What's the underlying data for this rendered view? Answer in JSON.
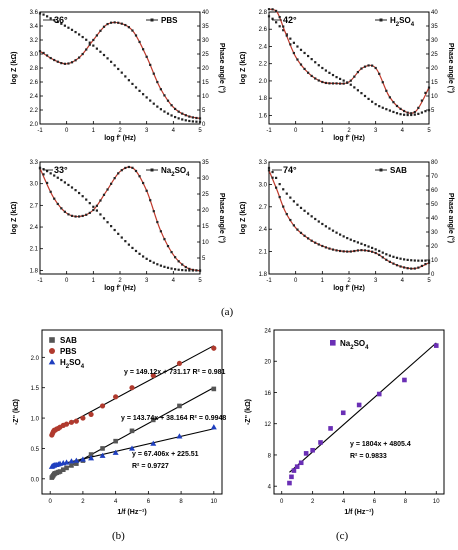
{
  "captions": {
    "a": "(a)",
    "b": "(b)",
    "c": "(c)"
  },
  "chart_data": [
    {
      "id": "bode-pbs",
      "type": "line",
      "xlabel": "log f' (Hz)",
      "ylabel": "log Z (kΩ)",
      "y2label": "Phase angle (°)",
      "xlim": [
        -1,
        5
      ],
      "ylim": [
        2.0,
        3.6
      ],
      "y2lim": [
        0,
        40
      ],
      "xticks": [
        "-1",
        "0",
        "1",
        "2",
        "3",
        "4",
        "5"
      ],
      "yticks": [
        "2.0",
        "2.2",
        "2.4",
        "2.6",
        "2.8",
        "3.0",
        "3.2",
        "3.4",
        "3.6"
      ],
      "y2ticks": [
        "0",
        "5",
        "10",
        "15",
        "20",
        "25",
        "30",
        "35",
        "40"
      ],
      "legend": "PBS",
      "annotation": "36°",
      "series": [
        {
          "axis": "y",
          "color": "#222222",
          "x": [
            -1,
            -0.5,
            0,
            0.5,
            1,
            1.5,
            2,
            2.5,
            3,
            3.5,
            4,
            4.5,
            5
          ],
          "y": [
            3.58,
            3.49,
            3.39,
            3.27,
            3.12,
            2.95,
            2.76,
            2.56,
            2.38,
            2.22,
            2.11,
            2.05,
            2.03
          ]
        },
        {
          "axis": "y2",
          "color": "#c0392b",
          "x": [
            -1,
            -0.5,
            0,
            0.5,
            1,
            1.5,
            2,
            2.5,
            3,
            3.5,
            4,
            4.5,
            5
          ],
          "y": [
            26,
            23,
            21.5,
            24,
            30,
            35.5,
            36,
            33,
            24,
            13,
            6,
            3,
            2
          ]
        }
      ]
    },
    {
      "id": "bode-h2so4",
      "type": "line",
      "xlabel": "log f' (Hz)",
      "ylabel": "log Z (kΩ)",
      "y2label": "Phase angle (°)",
      "xlim": [
        -1,
        5
      ],
      "ylim": [
        1.5,
        2.8
      ],
      "y2lim": [
        0,
        40
      ],
      "xticks": [
        "-1",
        "0",
        "1",
        "2",
        "3",
        "4",
        "5"
      ],
      "yticks": [
        "1.6",
        "1.8",
        "2.0",
        "2.2",
        "2.4",
        "2.6",
        "2.8"
      ],
      "y2ticks": [
        "5",
        "10",
        "15",
        "20",
        "25",
        "30",
        "35",
        "40"
      ],
      "legend": "H2SO4",
      "annotation": "42°",
      "series": [
        {
          "axis": "y",
          "color": "#222222",
          "x": [
            -1,
            -0.5,
            0,
            0.5,
            1,
            1.5,
            2,
            2.5,
            3,
            3.5,
            4,
            4.5,
            5
          ],
          "y": [
            2.75,
            2.6,
            2.42,
            2.28,
            2.15,
            2.05,
            1.97,
            1.85,
            1.73,
            1.66,
            1.61,
            1.61,
            1.66
          ]
        },
        {
          "axis": "y2",
          "color": "#c0392b",
          "x": [
            -1,
            -0.7,
            -0.4,
            0,
            0.5,
            1,
            1.5,
            2,
            2.5,
            3,
            3.5,
            4,
            4.5,
            5
          ],
          "y": [
            41,
            40,
            33,
            24,
            18,
            15,
            14.5,
            15,
            20,
            20,
            10,
            5,
            4.5,
            13
          ]
        }
      ]
    },
    {
      "id": "bode-na2so4",
      "type": "line",
      "xlabel": "log f' (Hz)",
      "ylabel": "log Z (kΩ)",
      "y2label": "Phase angle (°)",
      "xlim": [
        -1,
        5
      ],
      "ylim": [
        1.75,
        3.3
      ],
      "y2lim": [
        0,
        35
      ],
      "xticks": [
        "-1",
        "0",
        "1",
        "2",
        "3",
        "4",
        "5"
      ],
      "yticks": [
        "1.8",
        "2.1",
        "2.4",
        "2.7",
        "3.0",
        "3.3"
      ],
      "y2ticks": [
        "5",
        "10",
        "15",
        "20",
        "25",
        "30",
        "35"
      ],
      "legend": "Na2SO4",
      "annotation": "33°",
      "series": [
        {
          "axis": "y",
          "color": "#222222",
          "x": [
            -1,
            -0.5,
            0,
            0.5,
            1,
            1.5,
            2,
            2.5,
            3,
            3.5,
            4,
            4.5,
            5
          ],
          "y": [
            3.22,
            3.12,
            3.0,
            2.86,
            2.68,
            2.48,
            2.28,
            2.1,
            1.96,
            1.87,
            1.82,
            1.8,
            1.8
          ]
        },
        {
          "axis": "y2",
          "color": "#c0392b",
          "x": [
            -1,
            -0.5,
            0,
            0.5,
            1,
            1.5,
            2,
            2.5,
            3,
            3.5,
            4,
            4.5,
            5
          ],
          "y": [
            33,
            24,
            19,
            18,
            20,
            26,
            32,
            33,
            26,
            14,
            6,
            2,
            1
          ]
        }
      ]
    },
    {
      "id": "bode-sab",
      "type": "line",
      "xlabel": "log f' (Hz)",
      "ylabel": "log Z (kΩ)",
      "y2label": "Phase angle (°)",
      "xlim": [
        -1,
        5
      ],
      "ylim": [
        1.8,
        3.3
      ],
      "y2lim": [
        0,
        80
      ],
      "xticks": [
        "-1",
        "0",
        "1",
        "2",
        "3",
        "4",
        "5"
      ],
      "yticks": [
        "1.8",
        "2.1",
        "2.4",
        "2.7",
        "3.0",
        "3.3"
      ],
      "y2ticks": [
        "0",
        "10",
        "20",
        "30",
        "40",
        "50",
        "60",
        "70",
        "80"
      ],
      "legend": "SAB",
      "annotation": "74°",
      "series": [
        {
          "axis": "y",
          "color": "#222222",
          "x": [
            -1,
            -0.5,
            0,
            0.5,
            1,
            1.5,
            2,
            2.5,
            3,
            3.5,
            4,
            4.5,
            5
          ],
          "y": [
            3.22,
            2.95,
            2.75,
            2.6,
            2.47,
            2.36,
            2.27,
            2.2,
            2.13,
            2.05,
            2.0,
            1.98,
            1.98
          ]
        },
        {
          "axis": "y2",
          "color": "#c0392b",
          "x": [
            -1,
            -0.7,
            -0.4,
            0,
            0.5,
            1,
            1.5,
            2,
            2.5,
            3,
            3.5,
            4,
            4.5,
            5
          ],
          "y": [
            74,
            60,
            45,
            33,
            25,
            20,
            17,
            16,
            17,
            15,
            9,
            5,
            4,
            8
          ]
        }
      ]
    },
    {
      "id": "zpp-vs-invf",
      "type": "scatter",
      "xlabel": "1/f (Hz⁻¹)",
      "ylabel": "-Z'' (kΩ)",
      "xlim": [
        -0.5,
        10.5
      ],
      "ylim": [
        -0.25,
        2.45
      ],
      "xticks": [
        "0",
        "2",
        "4",
        "6",
        "8",
        "10"
      ],
      "yticks": [
        "0.0",
        "0.5",
        "1.0",
        "1.5",
        "2.0"
      ],
      "series": [
        {
          "name": "SAB",
          "color": "#555555",
          "marker": "square",
          "x": [
            0.1,
            0.15,
            0.2,
            0.25,
            0.3,
            0.4,
            0.5,
            0.6,
            0.8,
            1.0,
            1.3,
            1.6,
            2.0,
            2.5,
            3.2,
            4.0,
            5.0,
            6.3,
            7.9,
            10.0
          ],
          "y": [
            0.02,
            0.04,
            0.06,
            0.08,
            0.09,
            0.1,
            0.11,
            0.12,
            0.15,
            0.18,
            0.22,
            0.25,
            0.3,
            0.4,
            0.5,
            0.62,
            0.79,
            0.97,
            1.2,
            1.48
          ],
          "fit": "y = 143.74x + 38.164 R² = 0.9948"
        },
        {
          "name": "PBS",
          "color": "#b03a2e",
          "marker": "circle",
          "x": [
            0.1,
            0.15,
            0.2,
            0.25,
            0.3,
            0.4,
            0.5,
            0.6,
            0.8,
            1.0,
            1.3,
            1.6,
            2.0,
            2.5,
            3.2,
            4.0,
            5.0,
            6.3,
            7.9,
            10.0
          ],
          "y": [
            0.72,
            0.75,
            0.78,
            0.8,
            0.8,
            0.82,
            0.83,
            0.85,
            0.88,
            0.9,
            0.93,
            0.95,
            1.0,
            1.06,
            1.2,
            1.35,
            1.5,
            1.7,
            1.9,
            2.15
          ],
          "fit": "y = 149.12x + 731.17 R² = 0.981"
        },
        {
          "name": "H2SO4",
          "color": "#1f3fbf",
          "marker": "triangle",
          "x": [
            0.1,
            0.15,
            0.2,
            0.25,
            0.3,
            0.4,
            0.5,
            0.6,
            0.8,
            1.0,
            1.3,
            1.6,
            2.0,
            2.5,
            3.2,
            4.0,
            5.0,
            6.3,
            7.9,
            10.0
          ],
          "y": [
            0.2,
            0.21,
            0.22,
            0.22,
            0.23,
            0.23,
            0.24,
            0.25,
            0.26,
            0.27,
            0.29,
            0.3,
            0.32,
            0.34,
            0.38,
            0.43,
            0.5,
            0.58,
            0.7,
            0.85
          ],
          "fit": "y = 67.406x + 225.51 R² = 0.9727"
        }
      ]
    },
    {
      "id": "zpp-na2so4",
      "type": "scatter",
      "xlabel": "1/f (Hz⁻¹)",
      "ylabel": "-Z'' (kΩ)",
      "xlim": [
        -0.5,
        10.5
      ],
      "ylim": [
        3,
        24
      ],
      "xticks": [
        "0",
        "2",
        "4",
        "6",
        "8",
        "10"
      ],
      "yticks": [
        "4",
        "8",
        "12",
        "16",
        "20",
        "24"
      ],
      "series": [
        {
          "name": "Na2SO4",
          "color": "#6a2fb5",
          "marker": "square",
          "x": [
            0.5,
            0.63,
            0.79,
            1.0,
            1.26,
            1.58,
            2.0,
            2.51,
            3.16,
            3.98,
            5.01,
            6.31,
            7.94,
            10.0
          ],
          "y": [
            4.4,
            5.2,
            6.0,
            6.5,
            7.0,
            8.2,
            8.6,
            9.6,
            11.4,
            13.4,
            14.4,
            15.8,
            17.6,
            22.0
          ],
          "fit": "y = 1804x + 4805.4 R² = 0.9833"
        }
      ]
    }
  ]
}
